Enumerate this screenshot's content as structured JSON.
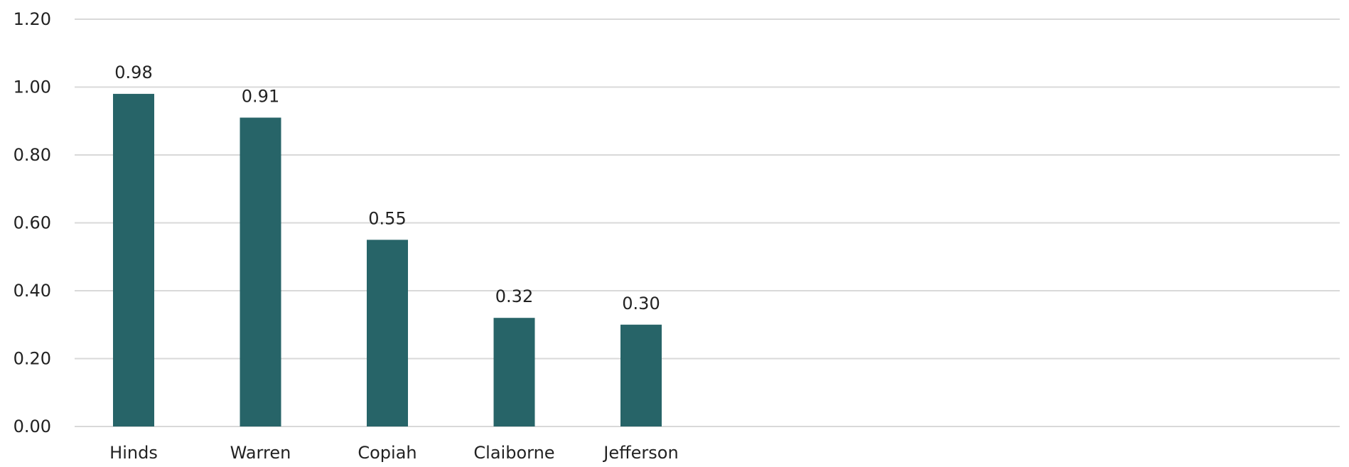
{
  "chart_data": {
    "type": "bar",
    "categories": [
      "Hinds",
      "Warren",
      "Copiah",
      "Claiborne",
      "Jefferson"
    ],
    "values": [
      0.98,
      0.91,
      0.55,
      0.32,
      0.3
    ],
    "data_labels": [
      "0.98",
      "0.91",
      "0.55",
      "0.32",
      "0.30"
    ],
    "yticks": [
      0,
      0.2,
      0.4,
      0.6,
      0.8,
      1.0,
      1.2
    ],
    "ytick_labels": [
      "0.00",
      "0.20",
      "0.40",
      "0.60",
      "0.80",
      "1.00",
      "1.20"
    ],
    "ylim": [
      0,
      1.2
    ],
    "grid": true,
    "legend": "none",
    "bar_color": "#276468"
  }
}
